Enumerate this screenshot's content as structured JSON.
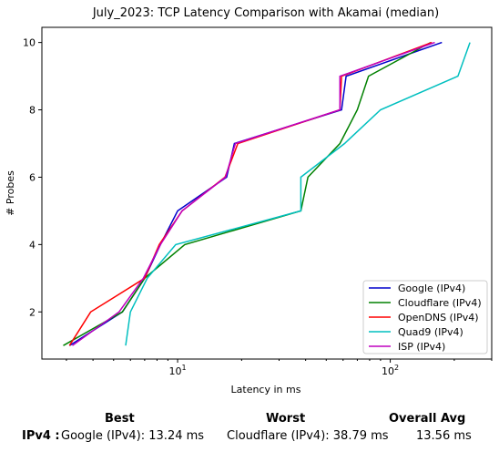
{
  "chart_data": {
    "type": "line",
    "title": "July_2023: TCP Latency Comparison with Akamai (median)",
    "xlabel": "Latency in ms",
    "ylabel": "# Probes",
    "x_scale": "log",
    "xlim": [
      2.3,
      300
    ],
    "ylim": [
      0.6,
      10.45
    ],
    "x_ticks": [
      {
        "value": 10,
        "label": "10^1"
      },
      {
        "value": 100,
        "label": "10^2"
      }
    ],
    "y_ticks": [
      2,
      4,
      6,
      8,
      10
    ],
    "grid": false,
    "legend_position": "lower-right",
    "series": [
      {
        "name": "Google (IPv4)",
        "color": "#0000cc",
        "points": [
          [
            3.1,
            1
          ],
          [
            5.5,
            2
          ],
          [
            7.0,
            3
          ],
          [
            8.3,
            4
          ],
          [
            10.0,
            5
          ],
          [
            17.0,
            6
          ],
          [
            18.5,
            7
          ],
          [
            59,
            8
          ],
          [
            62,
            9
          ],
          [
            175,
            10
          ]
        ]
      },
      {
        "name": "Cloudflare (IPv4)",
        "color": "#008000",
        "points": [
          [
            2.9,
            1
          ],
          [
            5.5,
            2
          ],
          [
            7.0,
            3
          ],
          [
            10.8,
            4
          ],
          [
            38,
            5
          ],
          [
            41,
            6
          ],
          [
            58,
            7
          ],
          [
            70,
            8
          ],
          [
            79,
            9
          ],
          [
            155,
            10
          ]
        ]
      },
      {
        "name": "OpenDNS (IPv4)",
        "color": "#ff0000",
        "points": [
          [
            3.1,
            1
          ],
          [
            3.9,
            2
          ],
          [
            7.0,
            3
          ],
          [
            8.2,
            4
          ],
          [
            10.5,
            5
          ],
          [
            16.7,
            6
          ],
          [
            19.2,
            7
          ],
          [
            58,
            8
          ],
          [
            59,
            9
          ],
          [
            157,
            10
          ]
        ]
      },
      {
        "name": "Quad9 (IPv4)",
        "color": "#00bfbf",
        "points": [
          [
            5.7,
            1
          ],
          [
            6.0,
            2
          ],
          [
            7.2,
            3
          ],
          [
            9.8,
            4
          ],
          [
            38,
            5
          ],
          [
            38,
            6
          ],
          [
            61,
            7
          ],
          [
            90,
            8
          ],
          [
            208,
            9
          ],
          [
            237,
            10
          ]
        ]
      },
      {
        "name": "ISP (IPv4)",
        "color": "#bf00bf",
        "points": [
          [
            3.2,
            1
          ],
          [
            5.3,
            2
          ],
          [
            6.9,
            3
          ],
          [
            8.3,
            4
          ],
          [
            10.5,
            5
          ],
          [
            16.8,
            6
          ],
          [
            18.7,
            7
          ],
          [
            58,
            8
          ],
          [
            58,
            9
          ],
          [
            162,
            10
          ]
        ]
      }
    ]
  },
  "summary": {
    "best_label": "Best",
    "worst_label": "Worst",
    "avg_label": "Overall Avg",
    "row_label": "IPv4 :",
    "best_value": "Google (IPv4): 13.24 ms",
    "worst_value": "Cloudflare (IPv4): 38.79 ms",
    "avg_value": "13.56 ms"
  }
}
